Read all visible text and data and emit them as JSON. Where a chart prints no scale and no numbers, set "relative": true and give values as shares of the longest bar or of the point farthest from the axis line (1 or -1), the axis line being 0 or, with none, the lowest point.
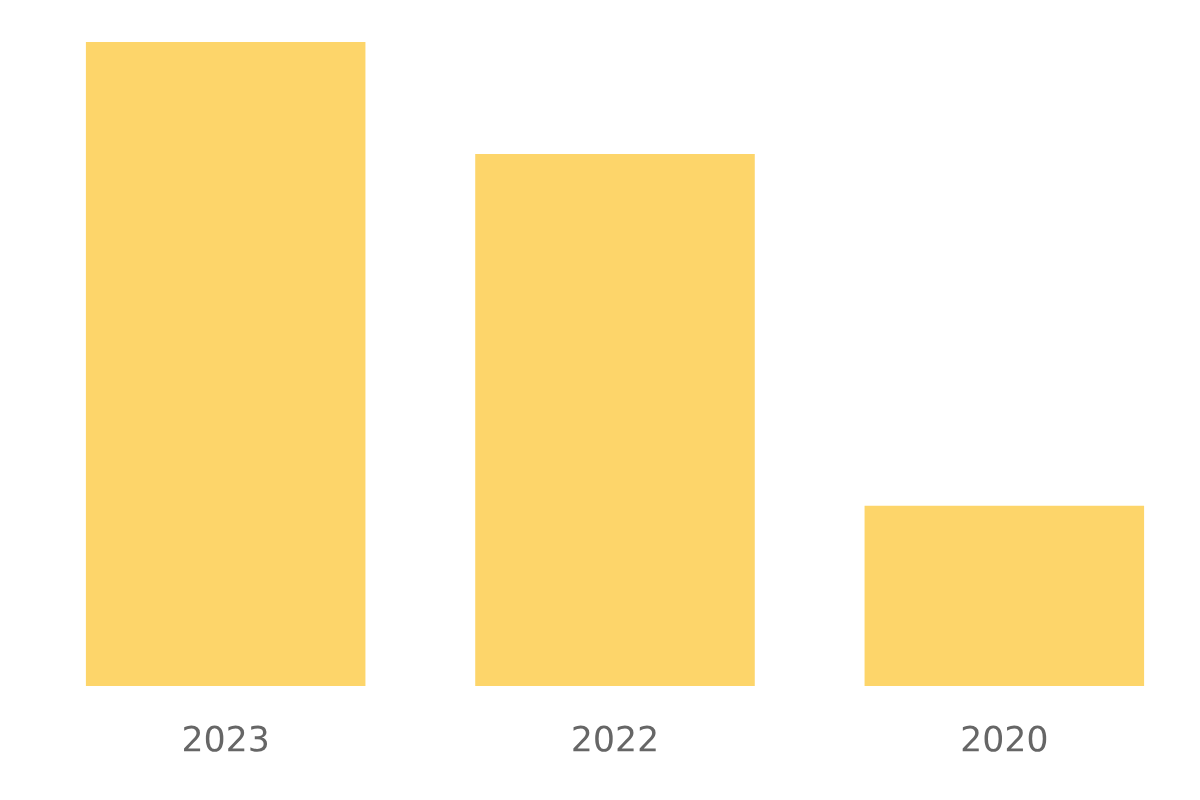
{
  "chart_data": {
    "type": "bar",
    "relative": true,
    "categories": [
      "2023",
      "2022",
      "2020"
    ],
    "values": [
      1,
      0.826,
      0.28
    ],
    "color": "#fdd56a",
    "grid": false,
    "legend": false
  }
}
